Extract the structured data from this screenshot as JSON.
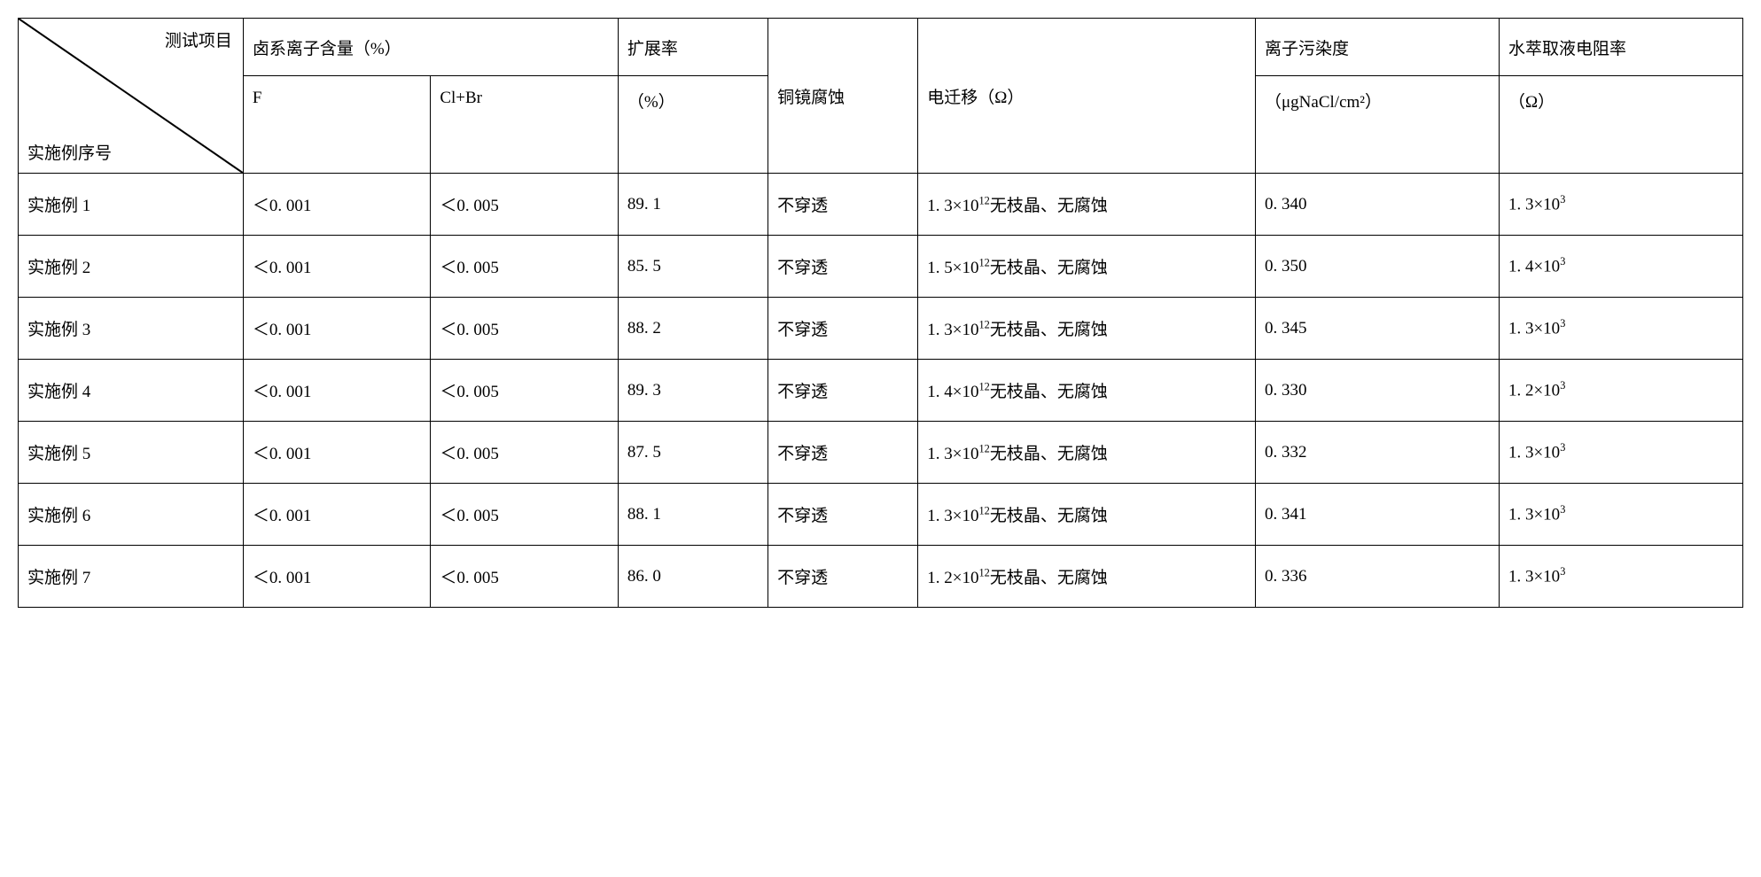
{
  "header": {
    "diag_top": "测试项目",
    "diag_bottom": "实施例序号",
    "halogen_header": "卤系离子含量（%）",
    "sub_f": "F",
    "sub_clbr": "Cl+Br",
    "ext_header": "扩展率",
    "ext_sub": "（%）",
    "corr_header": "铜镜腐蚀",
    "em_header": "电迁移（Ω）",
    "ion_header": "离子污染度",
    "ion_sub": "（μgNaCl/cm²）",
    "res_header": "水萃取液电阻率",
    "res_sub": "（Ω）"
  },
  "rows": [
    {
      "label": "实施例 1",
      "f": "＜0. 001",
      "clbr": "＜0. 005",
      "ext": "89. 1",
      "corr": "不穿透",
      "em_coef": "1. 3×10",
      "em_exp": "12",
      "em_tail": "无枝晶、无腐蚀",
      "ion": "0. 340",
      "res_coef": "1. 3×10",
      "res_exp": "3"
    },
    {
      "label": "实施例 2",
      "f": "＜0. 001",
      "clbr": "＜0. 005",
      "ext": "85. 5",
      "corr": "不穿透",
      "em_coef": "1. 5×10",
      "em_exp": "12",
      "em_tail": "无枝晶、无腐蚀",
      "ion": "0. 350",
      "res_coef": "1. 4×10",
      "res_exp": "3"
    },
    {
      "label": "实施例 3",
      "f": "＜0. 001",
      "clbr": "＜0. 005",
      "ext": "88. 2",
      "corr": "不穿透",
      "em_coef": "1. 3×10",
      "em_exp": "12",
      "em_tail": "无枝晶、无腐蚀",
      "ion": "0. 345",
      "res_coef": "1. 3×10",
      "res_exp": "3"
    },
    {
      "label": "实施例 4",
      "f": "＜0. 001",
      "clbr": "＜0. 005",
      "ext": "89. 3",
      "corr": "不穿透",
      "em_coef": "1. 4×10",
      "em_exp": "12",
      "em_tail": "无枝晶、无腐蚀",
      "ion": "0. 330",
      "res_coef": "1. 2×10",
      "res_exp": "3"
    },
    {
      "label": "实施例 5",
      "f": "＜0. 001",
      "clbr": "＜0. 005",
      "ext": "87. 5",
      "corr": "不穿透",
      "em_coef": "1. 3×10",
      "em_exp": "12",
      "em_tail": "无枝晶、无腐蚀",
      "ion": "0. 332",
      "res_coef": "1. 3×10",
      "res_exp": "3"
    },
    {
      "label": "实施例 6",
      "f": "＜0. 001",
      "clbr": "＜0. 005",
      "ext": "88. 1",
      "corr": "不穿透",
      "em_coef": "1. 3×10",
      "em_exp": "12",
      "em_tail": "无枝晶、无腐蚀",
      "ion": "0. 341",
      "res_coef": "1. 3×10",
      "res_exp": "3"
    },
    {
      "label": "实施例 7",
      "f": "＜0. 001",
      "clbr": "＜0. 005",
      "ext": "86. 0",
      "corr": "不穿透",
      "em_coef": "1. 2×10",
      "em_exp": "12",
      "em_tail": "无枝晶、无腐蚀",
      "ion": "0. 336",
      "res_coef": "1. 3×10",
      "res_exp": "3"
    }
  ]
}
